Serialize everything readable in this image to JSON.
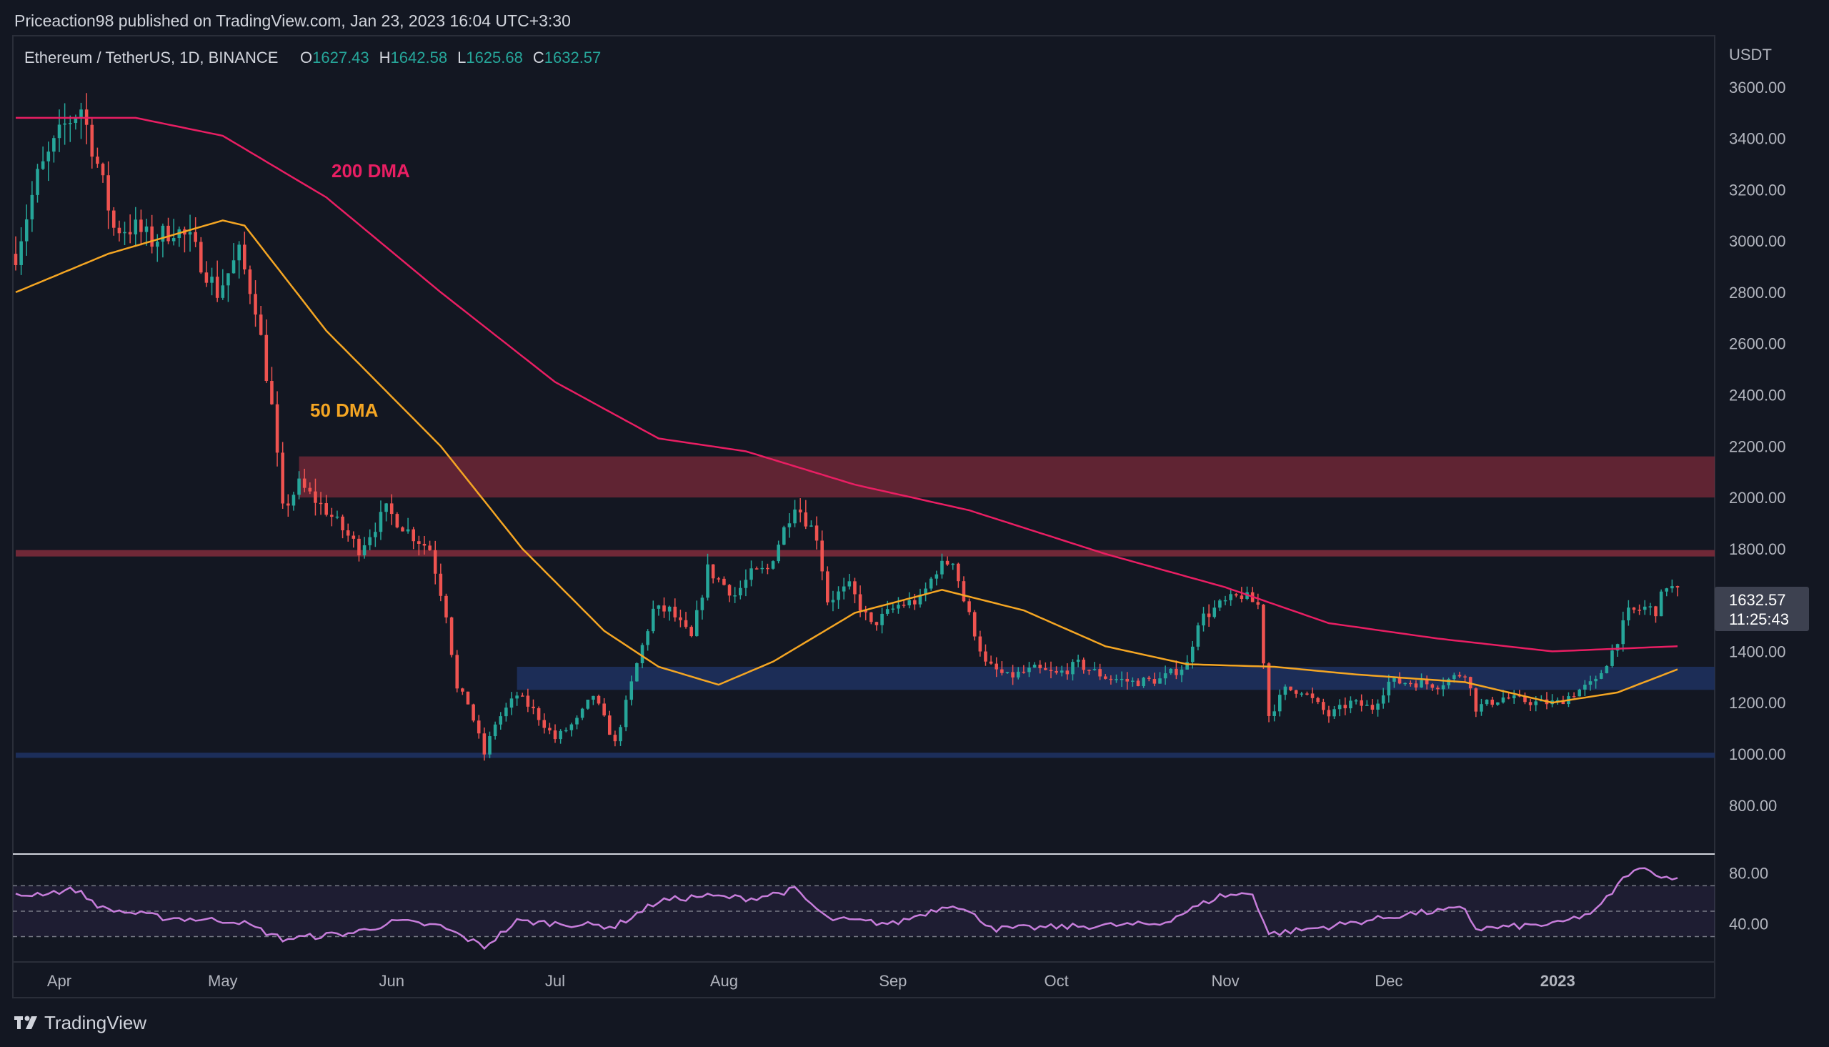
{
  "publisher": "Priceaction98 published on TradingView.com, Jan 23, 2023 16:04 UTC+3:30",
  "symbol": "Ethereum / TetherUS, 1D, BINANCE",
  "ohlc": {
    "o_label": "O",
    "o": "1627.43",
    "h_label": "H",
    "h": "1642.58",
    "l_label": "L",
    "l": "1625.68",
    "c_label": "C",
    "c": "1632.57"
  },
  "currency": "USDT",
  "price_tag": {
    "price": "1632.57",
    "countdown": "11:25:43"
  },
  "labels": {
    "dma200": "200 DMA",
    "dma50": "50 DMA"
  },
  "brand": "TradingView",
  "colors": {
    "background": "#131722",
    "up": "#26a69a",
    "down": "#ef5350",
    "dma200": "#e91e63",
    "dma50": "#f5a623",
    "rsi": "#c77ddb",
    "resistance_zone": "#7b2a3a",
    "support_zone": "#1e3160"
  },
  "chart_data": {
    "type": "candlestick",
    "x_range": [
      "2022-03-24",
      "2023-01-23"
    ],
    "y_range": [
      610,
      3800
    ],
    "price_ticks": [
      "3600.00",
      "3400.00",
      "3200.00",
      "3000.00",
      "2800.00",
      "2600.00",
      "2400.00",
      "2200.00",
      "2000.00",
      "1800.00",
      "1400.00",
      "1200.00",
      "1000.00",
      "800.00"
    ],
    "month_ticks": [
      {
        "label": "Apr",
        "date": "2022-04-01"
      },
      {
        "label": "May",
        "date": "2022-05-01"
      },
      {
        "label": "Jun",
        "date": "2022-06-01"
      },
      {
        "label": "Jul",
        "date": "2022-07-01"
      },
      {
        "label": "Aug",
        "date": "2022-08-01"
      },
      {
        "label": "Sep",
        "date": "2022-09-01"
      },
      {
        "label": "Oct",
        "date": "2022-10-01"
      },
      {
        "label": "Nov",
        "date": "2022-11-01"
      },
      {
        "label": "Dec",
        "date": "2022-12-01"
      },
      {
        "label": "2023",
        "date": "2023-01-01",
        "bold": true
      }
    ],
    "price_anchors": [
      [
        "2022-03-24",
        2950
      ],
      [
        "2022-03-28",
        3250
      ],
      [
        "2022-04-02",
        3450
      ],
      [
        "2022-04-05",
        3520
      ],
      [
        "2022-04-08",
        3300
      ],
      [
        "2022-04-11",
        3050
      ],
      [
        "2022-04-15",
        3050
      ],
      [
        "2022-04-18",
        3000
      ],
      [
        "2022-04-22",
        3050
      ],
      [
        "2022-04-25",
        3000
      ],
      [
        "2022-04-30",
        2800
      ],
      [
        "2022-05-04",
        2950
      ],
      [
        "2022-05-07",
        2750
      ],
      [
        "2022-05-10",
        2350
      ],
      [
        "2022-05-12",
        1950
      ],
      [
        "2022-05-15",
        2050
      ],
      [
        "2022-05-20",
        1950
      ],
      [
        "2022-05-26",
        1800
      ],
      [
        "2022-05-31",
        1950
      ],
      [
        "2022-06-05",
        1850
      ],
      [
        "2022-06-08",
        1800
      ],
      [
        "2022-06-11",
        1550
      ],
      [
        "2022-06-13",
        1250
      ],
      [
        "2022-06-15",
        1200
      ],
      [
        "2022-06-18",
        1000
      ],
      [
        "2022-06-20",
        1120
      ],
      [
        "2022-06-24",
        1230
      ],
      [
        "2022-06-27",
        1170
      ],
      [
        "2022-07-01",
        1060
      ],
      [
        "2022-07-05",
        1130
      ],
      [
        "2022-07-08",
        1230
      ],
      [
        "2022-07-12",
        1040
      ],
      [
        "2022-07-16",
        1350
      ],
      [
        "2022-07-19",
        1560
      ],
      [
        "2022-07-22",
        1560
      ],
      [
        "2022-07-26",
        1450
      ],
      [
        "2022-07-29",
        1720
      ],
      [
        "2022-08-03",
        1620
      ],
      [
        "2022-08-06",
        1700
      ],
      [
        "2022-08-09",
        1720
      ],
      [
        "2022-08-14",
        1980
      ],
      [
        "2022-08-18",
        1850
      ],
      [
        "2022-08-20",
        1600
      ],
      [
        "2022-08-24",
        1650
      ],
      [
        "2022-08-28",
        1500
      ],
      [
        "2022-09-02",
        1580
      ],
      [
        "2022-09-06",
        1600
      ],
      [
        "2022-09-09",
        1720
      ],
      [
        "2022-09-12",
        1760
      ],
      [
        "2022-09-14",
        1600
      ],
      [
        "2022-09-18",
        1350
      ],
      [
        "2022-09-22",
        1300
      ],
      [
        "2022-09-27",
        1330
      ],
      [
        "2022-10-01",
        1310
      ],
      [
        "2022-10-05",
        1350
      ],
      [
        "2022-10-10",
        1300
      ],
      [
        "2022-10-15",
        1280
      ],
      [
        "2022-10-20",
        1290
      ],
      [
        "2022-10-25",
        1350
      ],
      [
        "2022-10-27",
        1520
      ],
      [
        "2022-10-31",
        1580
      ],
      [
        "2022-11-04",
        1620
      ],
      [
        "2022-11-07",
        1580
      ],
      [
        "2022-11-09",
        1150
      ],
      [
        "2022-11-12",
        1250
      ],
      [
        "2022-11-15",
        1250
      ],
      [
        "2022-11-20",
        1150
      ],
      [
        "2022-11-24",
        1200
      ],
      [
        "2022-11-28",
        1180
      ],
      [
        "2022-12-01",
        1280
      ],
      [
        "2022-12-05",
        1280
      ],
      [
        "2022-12-10",
        1270
      ],
      [
        "2022-12-15",
        1320
      ],
      [
        "2022-12-17",
        1180
      ],
      [
        "2022-12-22",
        1220
      ],
      [
        "2022-12-28",
        1200
      ],
      [
        "2023-01-01",
        1200
      ],
      [
        "2023-01-05",
        1250
      ],
      [
        "2023-01-08",
        1280
      ],
      [
        "2023-01-11",
        1400
      ],
      [
        "2023-01-14",
        1550
      ],
      [
        "2023-01-17",
        1570
      ],
      [
        "2023-01-19",
        1560
      ],
      [
        "2023-01-21",
        1660
      ],
      [
        "2023-01-23",
        1632
      ]
    ],
    "dma50": [
      [
        "2022-03-24",
        2800
      ],
      [
        "2022-04-10",
        2950
      ],
      [
        "2022-05-01",
        3080
      ],
      [
        "2022-05-05",
        3060
      ],
      [
        "2022-05-20",
        2650
      ],
      [
        "2022-06-10",
        2200
      ],
      [
        "2022-06-25",
        1800
      ],
      [
        "2022-07-10",
        1480
      ],
      [
        "2022-07-20",
        1340
      ],
      [
        "2022-07-31",
        1270
      ],
      [
        "2022-08-10",
        1360
      ],
      [
        "2022-08-25",
        1550
      ],
      [
        "2022-09-10",
        1640
      ],
      [
        "2022-09-25",
        1560
      ],
      [
        "2022-10-10",
        1420
      ],
      [
        "2022-10-25",
        1350
      ],
      [
        "2022-11-10",
        1340
      ],
      [
        "2022-11-25",
        1310
      ],
      [
        "2022-12-15",
        1280
      ],
      [
        "2022-12-31",
        1200
      ],
      [
        "2023-01-12",
        1240
      ],
      [
        "2023-01-23",
        1330
      ]
    ],
    "dma200": [
      [
        "2022-03-24",
        3480
      ],
      [
        "2022-04-15",
        3480
      ],
      [
        "2022-05-01",
        3410
      ],
      [
        "2022-05-20",
        3170
      ],
      [
        "2022-06-10",
        2800
      ],
      [
        "2022-07-01",
        2450
      ],
      [
        "2022-07-20",
        2230
      ],
      [
        "2022-08-05",
        2180
      ],
      [
        "2022-08-25",
        2050
      ],
      [
        "2022-09-15",
        1950
      ],
      [
        "2022-10-10",
        1780
      ],
      [
        "2022-11-01",
        1650
      ],
      [
        "2022-11-20",
        1510
      ],
      [
        "2022-12-10",
        1450
      ],
      [
        "2022-12-31",
        1400
      ],
      [
        "2023-01-23",
        1420
      ]
    ],
    "zones": [
      {
        "type": "resistance",
        "low": 2000,
        "high": 2160,
        "from": "2022-05-15",
        "to": "2023-01-23"
      },
      {
        "type": "resistance_line",
        "low": 1770,
        "high": 1795,
        "from": "2022-03-24",
        "to": "2023-01-23"
      },
      {
        "type": "support",
        "low": 1250,
        "high": 1340,
        "from": "2022-06-24",
        "to": "2023-01-23"
      },
      {
        "type": "support_line",
        "low": 985,
        "high": 1005,
        "from": "2022-03-24",
        "to": "2023-01-23"
      }
    ],
    "rsi": {
      "ticks": [
        "80.00",
        "40.00"
      ],
      "levels": [
        70,
        50,
        30
      ],
      "anchors": [
        [
          "2022-03-24",
          62
        ],
        [
          "2022-04-04",
          67
        ],
        [
          "2022-04-09",
          52
        ],
        [
          "2022-04-20",
          45
        ],
        [
          "2022-05-04",
          42
        ],
        [
          "2022-05-12",
          28
        ],
        [
          "2022-05-25",
          33
        ],
        [
          "2022-06-02",
          42
        ],
        [
          "2022-06-10",
          38
        ],
        [
          "2022-06-18",
          22
        ],
        [
          "2022-06-24",
          42
        ],
        [
          "2022-07-12",
          38
        ],
        [
          "2022-07-20",
          58
        ],
        [
          "2022-07-28",
          62
        ],
        [
          "2022-08-06",
          60
        ],
        [
          "2022-08-14",
          67
        ],
        [
          "2022-08-20",
          44
        ],
        [
          "2022-09-01",
          40
        ],
        [
          "2022-09-12",
          56
        ],
        [
          "2022-09-20",
          36
        ],
        [
          "2022-10-05",
          38
        ],
        [
          "2022-10-20",
          40
        ],
        [
          "2022-10-31",
          62
        ],
        [
          "2022-11-06",
          64
        ],
        [
          "2022-11-09",
          32
        ],
        [
          "2022-11-20",
          38
        ],
        [
          "2022-12-05",
          48
        ],
        [
          "2022-12-15",
          52
        ],
        [
          "2022-12-17",
          36
        ],
        [
          "2023-01-01",
          40
        ],
        [
          "2023-01-08",
          50
        ],
        [
          "2023-01-14",
          80
        ],
        [
          "2023-01-18",
          84
        ],
        [
          "2023-01-20",
          76
        ],
        [
          "2023-01-23",
          78
        ]
      ]
    }
  }
}
